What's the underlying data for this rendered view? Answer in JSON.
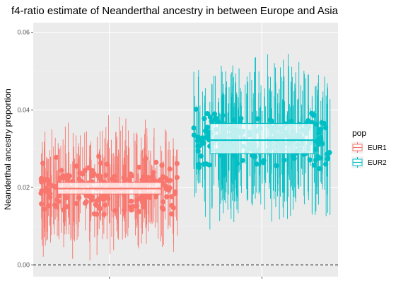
{
  "chart_data": {
    "type": "boxplot-with-points-and-errorbars",
    "title": "f4-ratio estimate of Neanderthal ancestry in between Europe and Asia",
    "xlabel": "",
    "ylabel": "Neanderthal ancestry proportion",
    "ylim": [
      -0.003,
      0.0625
    ],
    "yticks": [
      0.0,
      0.02,
      0.04,
      0.06
    ],
    "ytick_labels": [
      "0.00",
      "0.02",
      "0.04",
      "0.06"
    ],
    "reference_line": {
      "y": 0,
      "style": "dashed",
      "color": "#000000"
    },
    "grid": true,
    "legend": {
      "title": "pop",
      "position": "right"
    },
    "series": [
      {
        "name": "EUR1",
        "color": "#F8766D",
        "n_points": 200,
        "box": {
          "q1": 0.0183,
          "median": 0.0197,
          "q3": 0.0213
        },
        "point_spread": [
          0.0105,
          0.03
        ],
        "errorbar_half_width": 0.009
      },
      {
        "name": "EUR2",
        "color": "#00BFC4",
        "n_points": 200,
        "box": {
          "q1": 0.0287,
          "median": 0.0322,
          "q3": 0.0365
        },
        "point_spread": [
          0.023,
          0.042
        ],
        "errorbar_half_width": 0.012
      }
    ]
  }
}
